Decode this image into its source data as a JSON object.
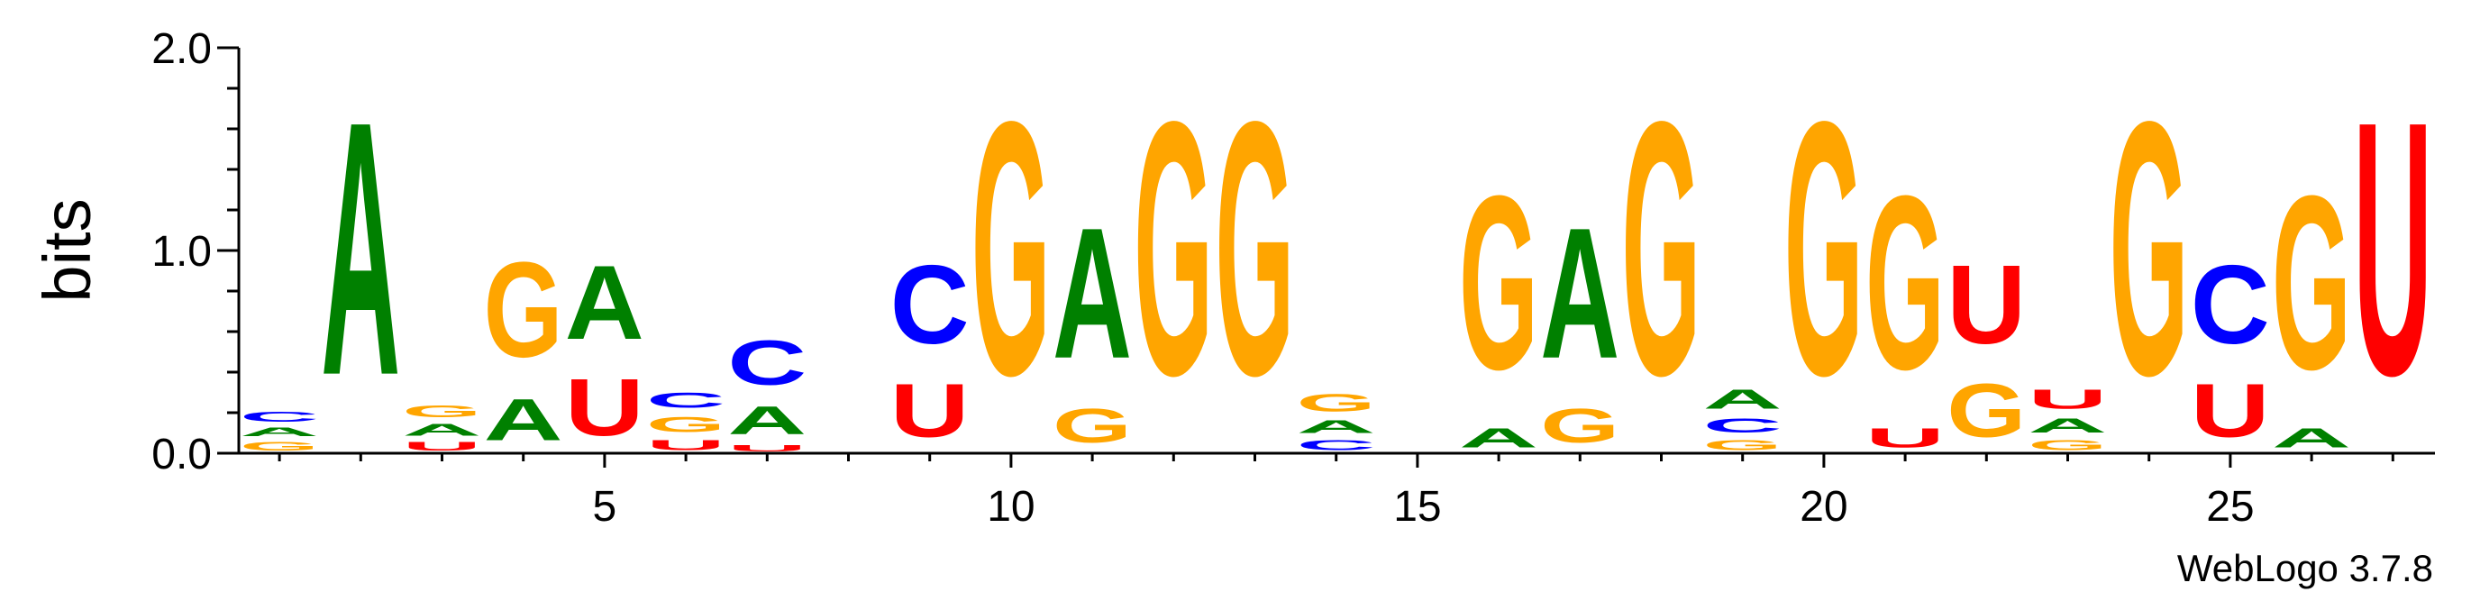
{
  "chart_data": {
    "type": "sequence-logo",
    "ylabel": "bits",
    "ylim": [
      0,
      2.0
    ],
    "yticks": [
      "0.0",
      "1.0",
      "2.0"
    ],
    "xticks": [
      "5",
      "10",
      "15",
      "20",
      "25"
    ],
    "xrange": [
      1,
      27
    ],
    "credit": "WebLogo 3.7.8",
    "colors": {
      "A": "#008000",
      "C": "#0000ff",
      "G": "#ffa500",
      "U": "#ff0000"
    },
    "positions": [
      {
        "pos": 1,
        "stack": [
          [
            "G",
            0.07
          ],
          [
            "A",
            0.07
          ],
          [
            "C",
            0.08
          ]
        ]
      },
      {
        "pos": 2,
        "stack": [
          [
            "A",
            2.0
          ]
        ]
      },
      {
        "pos": 3,
        "stack": [
          [
            "U",
            0.07
          ],
          [
            "A",
            0.09
          ],
          [
            "G",
            0.09
          ]
        ]
      },
      {
        "pos": 4,
        "stack": [
          [
            "A",
            0.33
          ],
          [
            "G",
            0.75
          ]
        ]
      },
      {
        "pos": 5,
        "stack": [
          [
            "U",
            0.45
          ],
          [
            "A",
            0.58
          ]
        ]
      },
      {
        "pos": 6,
        "stack": [
          [
            "U",
            0.08
          ],
          [
            "G",
            0.12
          ],
          [
            "C",
            0.12
          ]
        ]
      },
      {
        "pos": 7,
        "stack": [
          [
            "U",
            0.05
          ],
          [
            "A",
            0.22
          ],
          [
            "C",
            0.35
          ]
        ]
      },
      {
        "pos": 8,
        "stack": []
      },
      {
        "pos": 9,
        "stack": [
          [
            "U",
            0.42
          ],
          [
            "C",
            0.62
          ]
        ]
      },
      {
        "pos": 10,
        "stack": [
          [
            "G",
            2.0
          ]
        ]
      },
      {
        "pos": 11,
        "stack": [
          [
            "G",
            0.27
          ],
          [
            "A",
            1.03
          ]
        ]
      },
      {
        "pos": 12,
        "stack": [
          [
            "G",
            2.0
          ]
        ]
      },
      {
        "pos": 13,
        "stack": [
          [
            "G",
            2.0
          ]
        ]
      },
      {
        "pos": 14,
        "stack": [
          [
            "C",
            0.08
          ],
          [
            "A",
            0.1
          ],
          [
            "G",
            0.14
          ]
        ]
      },
      {
        "pos": 15,
        "stack": []
      },
      {
        "pos": 16,
        "stack": [
          [
            "A",
            0.15
          ],
          [
            "G",
            1.37
          ]
        ]
      },
      {
        "pos": 17,
        "stack": [
          [
            "G",
            0.27
          ],
          [
            "A",
            1.03
          ]
        ]
      },
      {
        "pos": 18,
        "stack": [
          [
            "G",
            2.0
          ]
        ]
      },
      {
        "pos": 19,
        "stack": [
          [
            "G",
            0.08
          ],
          [
            "C",
            0.11
          ],
          [
            "A",
            0.15
          ]
        ]
      },
      {
        "pos": 20,
        "stack": [
          [
            "G",
            2.0
          ]
        ]
      },
      {
        "pos": 21,
        "stack": [
          [
            "U",
            0.15
          ],
          [
            "G",
            1.37
          ]
        ]
      },
      {
        "pos": 22,
        "stack": [
          [
            "G",
            0.42
          ],
          [
            "U",
            0.62
          ]
        ]
      },
      {
        "pos": 23,
        "stack": [
          [
            "G",
            0.08
          ],
          [
            "A",
            0.11
          ],
          [
            "U",
            0.15
          ]
        ]
      },
      {
        "pos": 24,
        "stack": [
          [
            "G",
            2.0
          ]
        ]
      },
      {
        "pos": 25,
        "stack": [
          [
            "U",
            0.42
          ],
          [
            "C",
            0.62
          ]
        ]
      },
      {
        "pos": 26,
        "stack": [
          [
            "A",
            0.15
          ],
          [
            "G",
            1.37
          ]
        ]
      },
      {
        "pos": 27,
        "stack": [
          [
            "U",
            2.0
          ]
        ]
      }
    ]
  }
}
